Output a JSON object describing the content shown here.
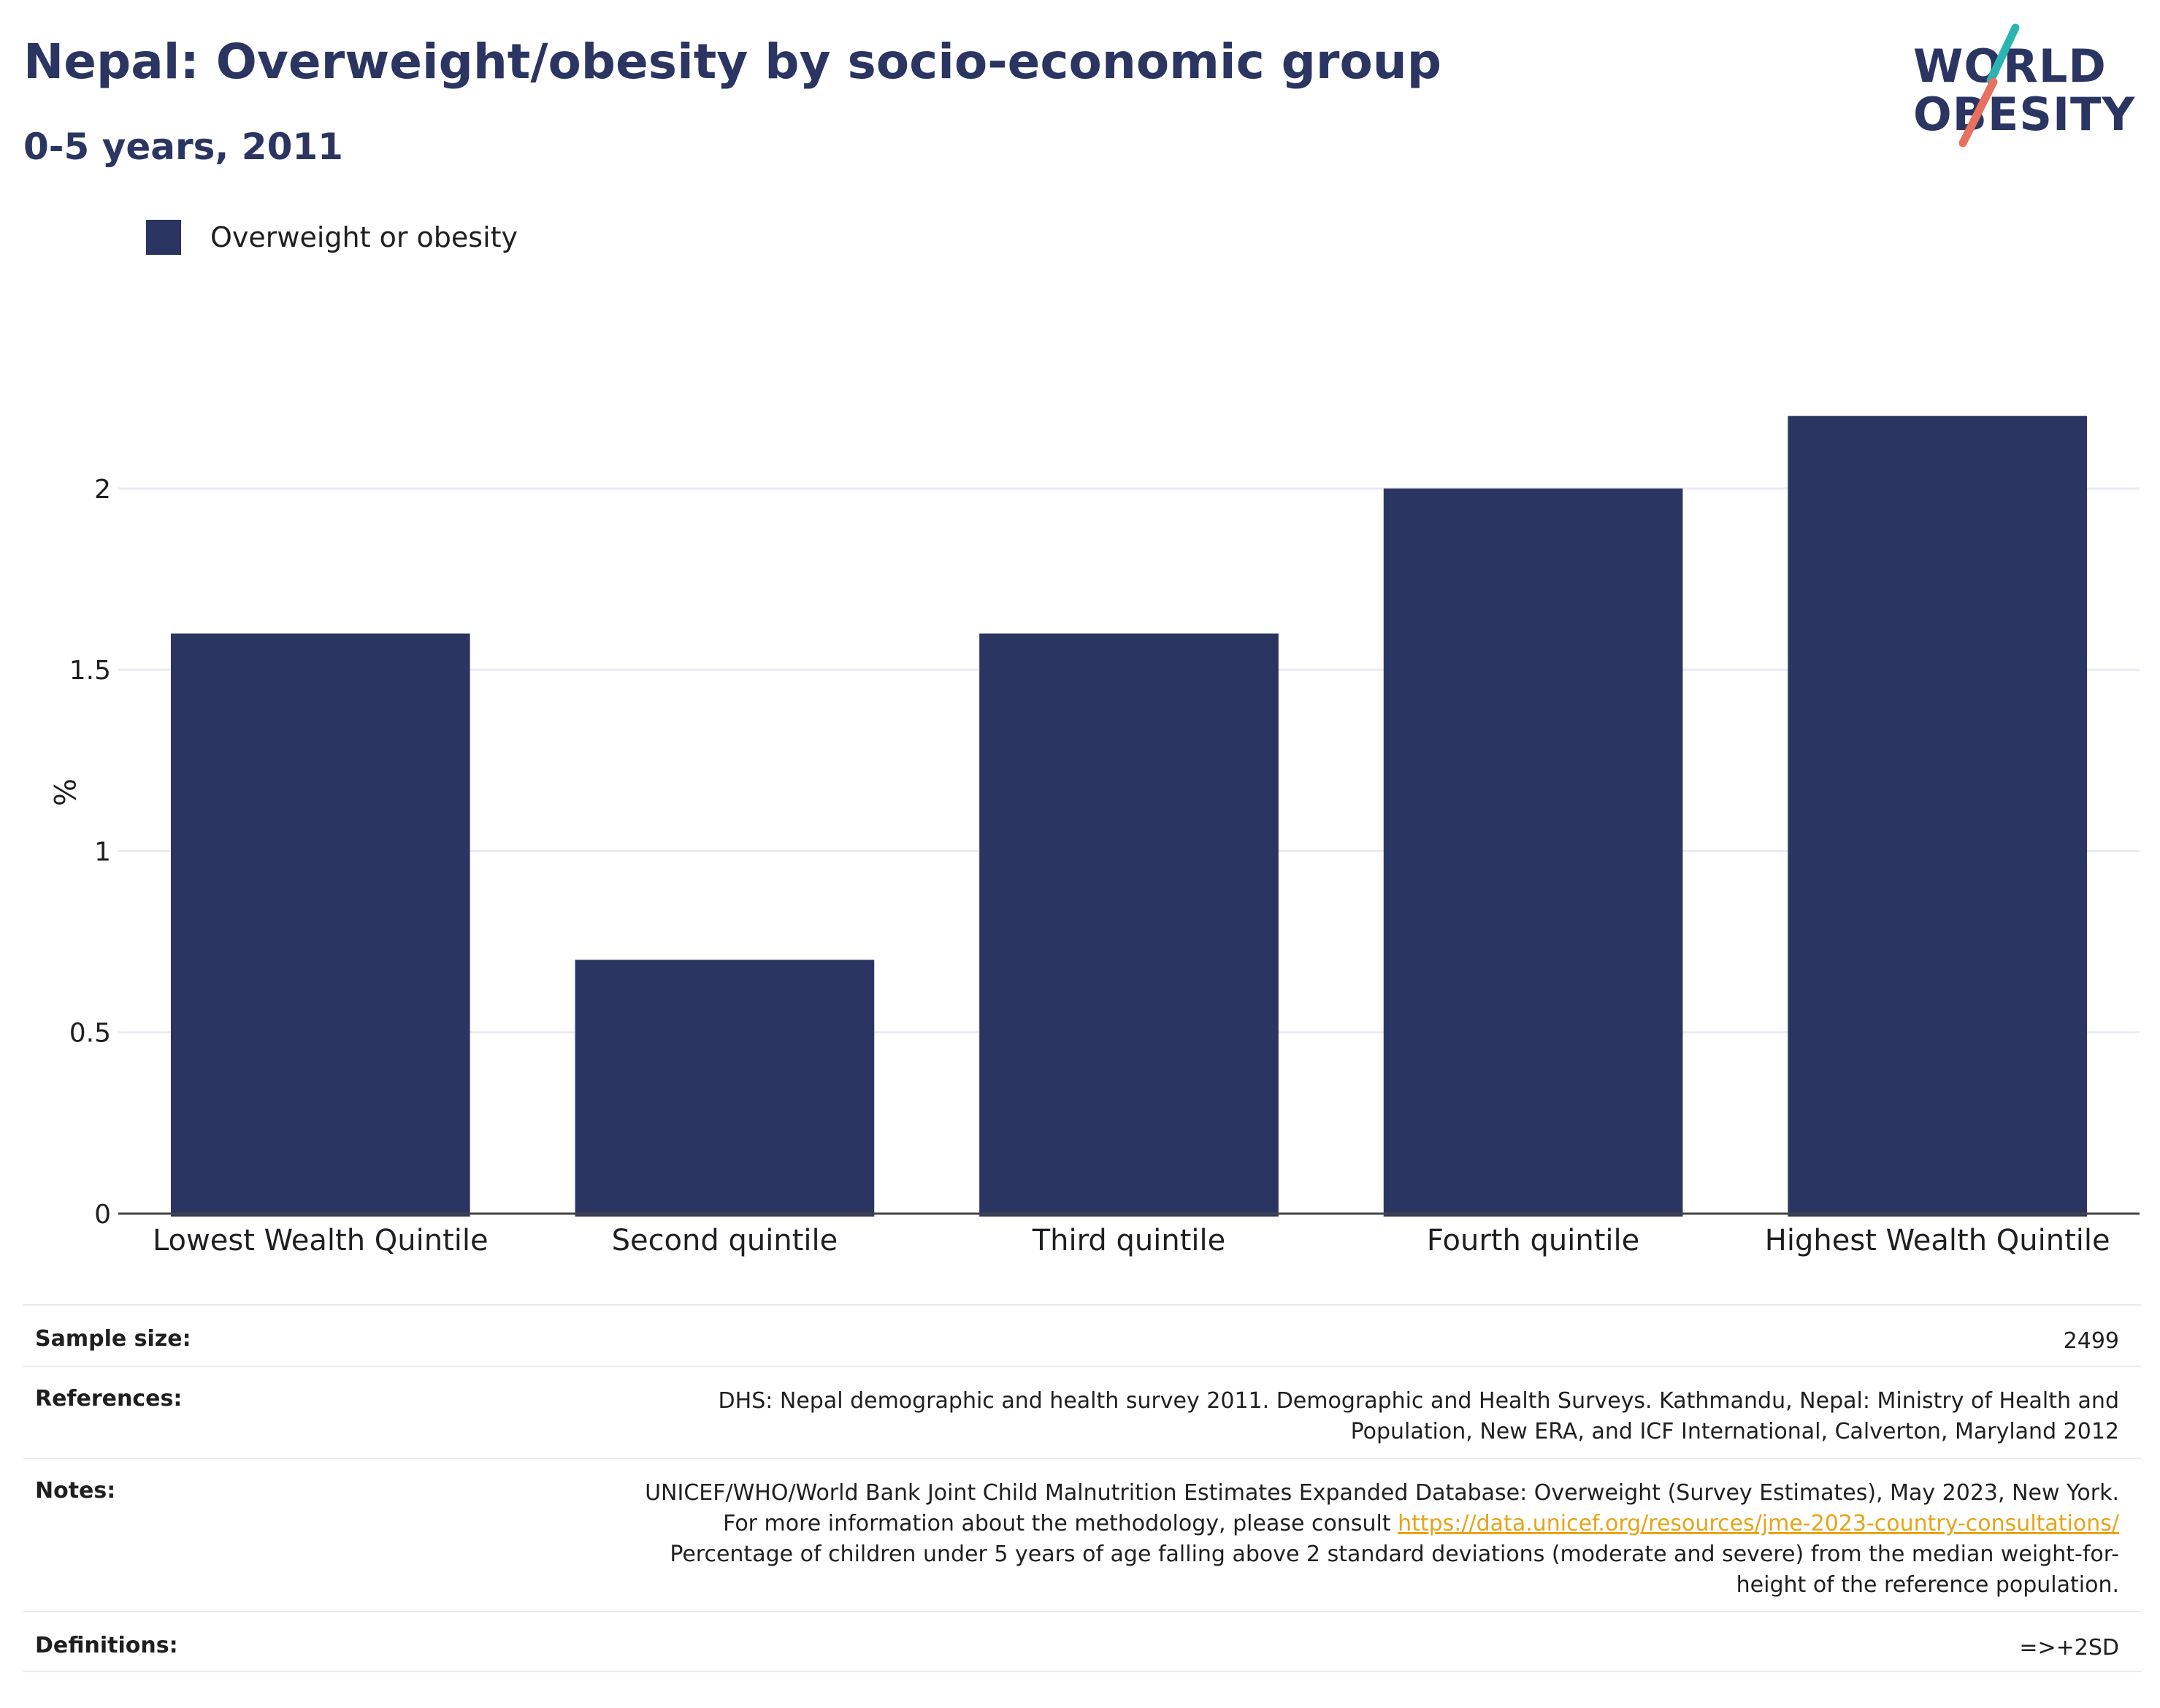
{
  "header": {
    "title": "Nepal: Overweight/obesity by socio-economic group",
    "subtitle": "0-5 years, 2011"
  },
  "logo": {
    "line1": "WORLD",
    "line2": "OBESITY",
    "accent_teal": "#2bb5b0",
    "accent_coral": "#e8705f"
  },
  "colors": {
    "bar": "#2b3562",
    "gridline": "#e8ebf2",
    "axis": "#1f1f1f"
  },
  "chart_data": {
    "type": "bar",
    "categories": [
      "Lowest Wealth Quintile",
      "Second quintile",
      "Third quintile",
      "Fourth quintile",
      "Highest Wealth Quintile"
    ],
    "series": [
      {
        "name": "Overweight or obesity",
        "values": [
          1.6,
          0.7,
          1.6,
          2.0,
          2.2
        ]
      }
    ],
    "ylabel": "%",
    "yticks": [
      0,
      0.5,
      1,
      1.5,
      2
    ],
    "ytick_labels": [
      "0",
      "0.5",
      "1",
      "1.5",
      "2"
    ],
    "ylim": [
      0,
      2.3
    ],
    "grid": true,
    "legend": "top-left"
  },
  "info": {
    "sample_size": {
      "label": "Sample size:",
      "value": "2499"
    },
    "references": {
      "label": "References:",
      "value": "DHS: Nepal demographic and health survey 2011. Demographic and Health Surveys. Kathmandu, Nepal: Ministry of Health and Population, New ERA, and ICF International, Calverton, Maryland 2012"
    },
    "notes": {
      "label": "Notes:",
      "text_before": "UNICEF/WHO/World Bank Joint Child Malnutrition Estimates Expanded Database: Overweight (Survey Estimates), May 2023, New York. For more information about the methodology, please consult ",
      "link": "https://data.unicef.org/resources/jme-2023-country-consultations/",
      "text_after": " Percentage of children under 5 years of age falling above 2 standard deviations (moderate and severe) from the median weight-for-height of the reference population."
    },
    "definitions": {
      "label": "Definitions:",
      "value": "=>+2SD"
    }
  }
}
